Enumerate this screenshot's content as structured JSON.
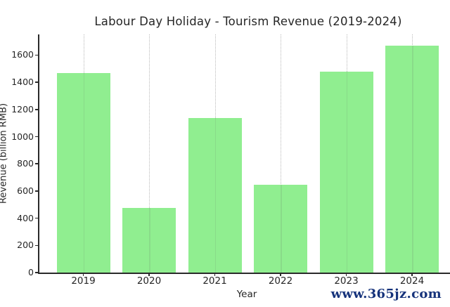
{
  "watermark": {
    "text": "www.365jz.com",
    "color": "#16337b"
  },
  "chart_data": {
    "type": "bar",
    "title": "Labour Day Holiday - Tourism Revenue (2019-2024)",
    "xlabel": "Year",
    "ylabel": "Revenue (billion RMB)",
    "categories": [
      "2019",
      "2020",
      "2021",
      "2022",
      "2023",
      "2024"
    ],
    "values": [
      1470,
      475,
      1135,
      645,
      1480,
      1670
    ],
    "ylim": [
      0,
      1752
    ],
    "yticks": [
      0,
      200,
      400,
      600,
      800,
      1000,
      1200,
      1400,
      1600
    ],
    "grid": "vertical dotted gridline at each category, no horizontal gridlines",
    "legend": "none",
    "bar_color": "#90ee90",
    "gridline_color": "#b9b9b9",
    "axis_color": "#2a2a2a",
    "text_color": "#262626"
  }
}
